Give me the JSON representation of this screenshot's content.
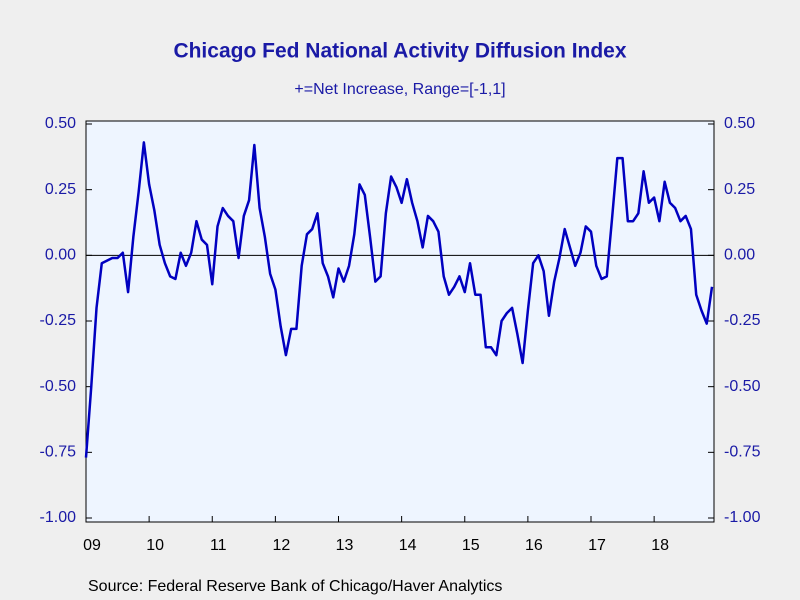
{
  "chart_data": {
    "type": "line",
    "title": "Chicago Fed National Activity Diffusion Index",
    "subtitle": "+=Net Increase, Range=[-1,1]",
    "source": "Source:  Federal Reserve Bank of Chicago/Haver Analytics",
    "categories": [
      "09",
      null,
      null,
      null,
      null,
      null,
      null,
      null,
      null,
      null,
      null,
      null,
      "10",
      null,
      null,
      null,
      null,
      null,
      null,
      null,
      null,
      null,
      null,
      null,
      "11",
      null,
      null,
      null,
      null,
      null,
      null,
      null,
      null,
      null,
      null,
      null,
      "12",
      null,
      null,
      null,
      null,
      null,
      null,
      null,
      null,
      null,
      null,
      null,
      "13",
      null,
      null,
      null,
      null,
      null,
      null,
      null,
      null,
      null,
      null,
      null,
      "14",
      null,
      null,
      null,
      null,
      null,
      null,
      null,
      null,
      null,
      null,
      null,
      "15",
      null,
      null,
      null,
      null,
      null,
      null,
      null,
      null,
      null,
      null,
      null,
      "16",
      null,
      null,
      null,
      null,
      null,
      null,
      null,
      null,
      null,
      null,
      null,
      "17",
      null,
      null,
      null,
      null,
      null,
      null,
      null,
      null,
      null,
      null,
      null,
      "18",
      null,
      null,
      null,
      null,
      null,
      null,
      null,
      null,
      null,
      null,
      null
    ],
    "series": [
      {
        "name": "Chicago Fed National Activity Diffusion Index",
        "color": "#0000c0",
        "values": [
          -0.77,
          -0.5,
          -0.2,
          -0.03,
          -0.02,
          -0.01,
          -0.01,
          0.01,
          -0.14,
          0.07,
          0.24,
          0.43,
          0.27,
          0.17,
          0.04,
          -0.03,
          -0.08,
          -0.09,
          0.01,
          -0.04,
          0.01,
          0.13,
          0.06,
          0.04,
          -0.11,
          0.11,
          0.18,
          0.15,
          0.13,
          -0.01,
          0.15,
          0.21,
          0.42,
          0.18,
          0.07,
          -0.07,
          -0.13,
          -0.27,
          -0.38,
          -0.28,
          -0.28,
          -0.04,
          0.08,
          0.1,
          0.16,
          -0.03,
          -0.08,
          -0.16,
          -0.05,
          -0.1,
          -0.04,
          0.08,
          0.27,
          0.23,
          0.07,
          -0.1,
          -0.08,
          0.16,
          0.3,
          0.26,
          0.2,
          0.29,
          0.2,
          0.13,
          0.03,
          0.15,
          0.13,
          0.09,
          -0.08,
          -0.15,
          -0.12,
          -0.08,
          -0.14,
          -0.03,
          -0.15,
          -0.15,
          -0.35,
          -0.35,
          -0.38,
          -0.25,
          -0.22,
          -0.2,
          -0.3,
          -0.41,
          -0.21,
          -0.03,
          0.0,
          -0.06,
          -0.23,
          -0.1,
          -0.01,
          0.1,
          0.03,
          -0.04,
          0.01,
          0.11,
          0.09,
          -0.04,
          -0.09,
          -0.08,
          0.14,
          0.37,
          0.37,
          0.13,
          0.13,
          0.16,
          0.32,
          0.2,
          0.22,
          0.13,
          0.28,
          0.2,
          0.18,
          0.13,
          0.15,
          0.1,
          -0.15,
          -0.21,
          -0.26,
          -0.12
        ]
      }
    ],
    "ylim": [
      -1,
      0.5
    ],
    "yticks": [
      {
        "value": 0.5,
        "label": "0.50"
      },
      {
        "value": 0.25,
        "label": "0.25"
      },
      {
        "value": 0,
        "label": "0.00"
      },
      {
        "value": -0.25,
        "label": "-0.25"
      },
      {
        "value": -0.5,
        "label": "-0.50"
      },
      {
        "value": -0.75,
        "label": "-0.75"
      },
      {
        "value": -1,
        "label": "-1.00"
      }
    ]
  }
}
